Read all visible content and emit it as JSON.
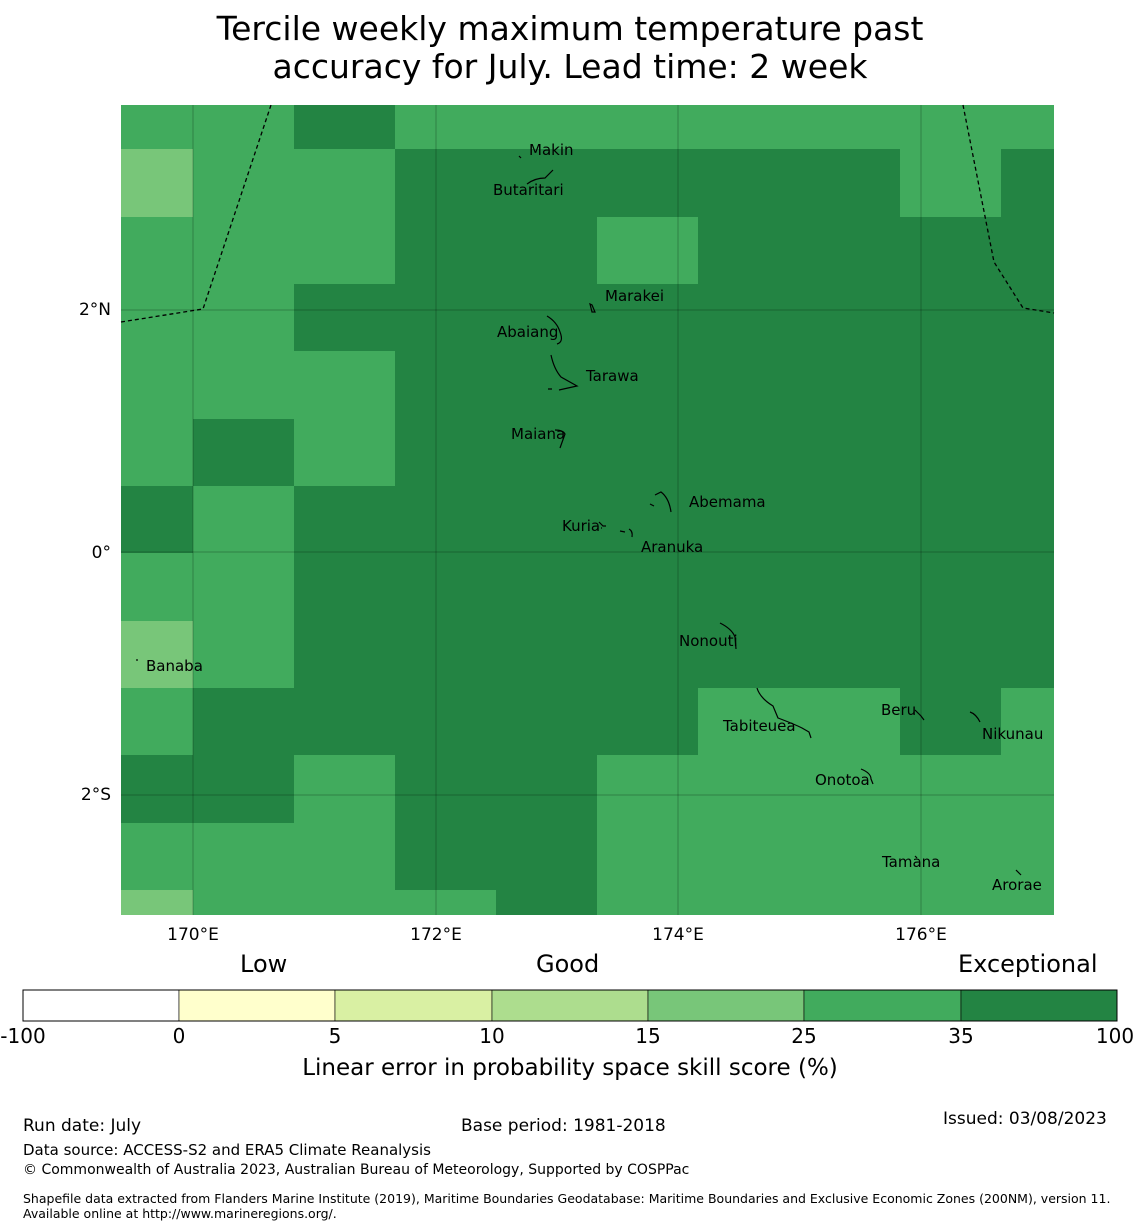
{
  "title_line1": "Tercile weekly maximum temperature past",
  "title_line2": "accuracy for July. Lead time: 2 week",
  "map": {
    "lon_ticks": [
      "170°E",
      "172°E",
      "174°E",
      "176°E"
    ],
    "lat_ticks": [
      "2°N",
      "0°",
      "2°S"
    ],
    "islands": [
      "Makin",
      "Butaritari",
      "Marakei",
      "Abaiang",
      "Tarawa",
      "Maiana",
      "Abemama",
      "Kuria",
      "Aranuka",
      "Nonouti",
      "Banaba",
      "Tabiteuea",
      "Beru",
      "Nikunau",
      "Onotoa",
      "Tamana",
      "Arorae"
    ]
  },
  "legend": {
    "words": [
      "Low",
      "Good",
      "Exceptional"
    ],
    "ticks": [
      "-100",
      "0",
      "5",
      "10",
      "15",
      "25",
      "35",
      "100"
    ],
    "colors": [
      "#ffffff",
      "#ffffcc",
      "#d9f0a3",
      "#addd8e",
      "#78c679",
      "#41ab5d",
      "#238443"
    ],
    "title": "Linear error in probability space skill score (%)"
  },
  "footer": {
    "run_date": "Run date: July",
    "base_period": "Base period: 1981-2018",
    "issued": "Issued: 03/08/2023",
    "data_source": "Data source: ACCESS-S2 and ERA5 Climate Reanalysis",
    "copyright": "© Commonwealth of Australia 2023, Australian Bureau of Meteorology, Supported by COSPPac",
    "shapefile": "Shapefile data extracted from Flanders Marine Institute (2019), Maritime Boundaries Geodatabase: Maritime Boundaries and Exclusive Economic Zones (200NM), version 11. Available online at http://www.marineregions.org/."
  }
}
